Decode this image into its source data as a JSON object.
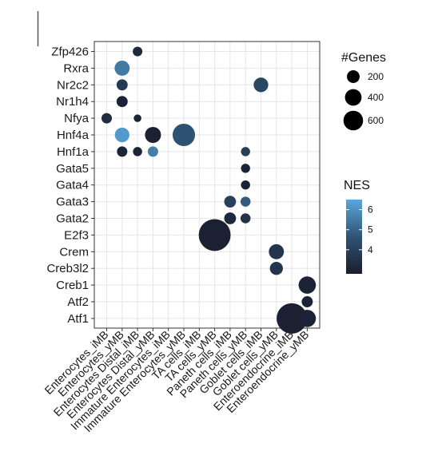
{
  "chart_data": {
    "type": "scatter",
    "title": "",
    "xlabel": "",
    "ylabel": "",
    "grid": true,
    "legend_placement": "right",
    "x_categories": [
      "Enterocytes_iMB",
      "Enterocytes_yMB",
      "Enterocytes Distal_iMB",
      "Enterocytes Distal_yMB",
      "Immature Enterocytes_iMB",
      "Immature Enterocytes_yMB",
      "TA cells_iMB",
      "TA cells_yMB",
      "Paneth cells_iMB",
      "Paneth cells_yMB",
      "Goblet cells_iMB",
      "Goblet cells_yMB",
      "Enteroendocrine_iMB",
      "Enteroendocrine_yMB"
    ],
    "y_categories": [
      "Zfp426",
      "Rxra",
      "Nr2c2",
      "Nr1h4",
      "Nfya",
      "Hnf4a",
      "Hnf1a",
      "Gata5",
      "Gata4",
      "Gata3",
      "Gata2",
      "E2f3",
      "Crem",
      "Creb3l2",
      "Creb1",
      "Atf2",
      "Atf1"
    ],
    "points": [
      {
        "x": "Enterocytes Distal_iMB",
        "y": "Zfp426",
        "genes": 40,
        "nes": 3.2
      },
      {
        "x": "Enterocytes_yMB",
        "y": "Rxra",
        "genes": 130,
        "nes": 5.5
      },
      {
        "x": "Enterocytes_yMB",
        "y": "Nr2c2",
        "genes": 60,
        "nes": 3.8
      },
      {
        "x": "Goblet cells_iMB",
        "y": "Nr2c2",
        "genes": 120,
        "nes": 4.2
      },
      {
        "x": "Enterocytes_yMB",
        "y": "Nr1h4",
        "genes": 60,
        "nes": 3.0
      },
      {
        "x": "Enterocytes_iMB",
        "y": "Nfya",
        "genes": 50,
        "nes": 3.3
      },
      {
        "x": "Enterocytes Distal_iMB",
        "y": "Nfya",
        "genes": 20,
        "nes": 3.0
      },
      {
        "x": "Enterocytes_yMB",
        "y": "Hnf4a",
        "genes": 120,
        "nes": 6.2
      },
      {
        "x": "Enterocytes Distal_yMB",
        "y": "Hnf4a",
        "genes": 150,
        "nes": 2.9
      },
      {
        "x": "Immature Enterocytes_yMB",
        "y": "Hnf4a",
        "genes": 330,
        "nes": 4.6
      },
      {
        "x": "Enterocytes_yMB",
        "y": "Hnf1a",
        "genes": 50,
        "nes": 3.1
      },
      {
        "x": "Enterocytes Distal_iMB",
        "y": "Hnf1a",
        "genes": 35,
        "nes": 3.0
      },
      {
        "x": "Enterocytes Distal_yMB",
        "y": "Hnf1a",
        "genes": 50,
        "nes": 5.6
      },
      {
        "x": "Paneth cells_yMB",
        "y": "Hnf1a",
        "genes": 35,
        "nes": 3.9
      },
      {
        "x": "Paneth cells_yMB",
        "y": "Gata5",
        "genes": 35,
        "nes": 3.0
      },
      {
        "x": "Paneth cells_yMB",
        "y": "Gata4",
        "genes": 35,
        "nes": 3.0
      },
      {
        "x": "Paneth cells_iMB",
        "y": "Gata3",
        "genes": 70,
        "nes": 4.0
      },
      {
        "x": "Paneth cells_yMB",
        "y": "Gata3",
        "genes": 45,
        "nes": 4.8
      },
      {
        "x": "Paneth cells_iMB",
        "y": "Gata2",
        "genes": 70,
        "nes": 3.2
      },
      {
        "x": "Paneth cells_yMB",
        "y": "Gata2",
        "genes": 45,
        "nes": 3.5
      },
      {
        "x": "TA cells_yMB",
        "y": "E2f3",
        "genes": 720,
        "nes": 2.9
      },
      {
        "x": "Goblet cells_yMB",
        "y": "Crem",
        "genes": 130,
        "nes": 3.6
      },
      {
        "x": "Goblet cells_yMB",
        "y": "Creb3l2",
        "genes": 90,
        "nes": 3.6
      },
      {
        "x": "Enteroendocrine_yMB",
        "y": "Creb1",
        "genes": 180,
        "nes": 3.0
      },
      {
        "x": "Enteroendocrine_yMB",
        "y": "Atf2",
        "genes": 60,
        "nes": 3.0
      },
      {
        "x": "Enteroendocrine_iMB",
        "y": "Atf1",
        "genes": 650,
        "nes": 2.9
      },
      {
        "x": "Enteroendocrine_yMB",
        "y": "Atf1",
        "genes": 180,
        "nes": 3.0
      }
    ],
    "size_legend": {
      "title": "#Genes",
      "values": [
        200,
        400,
        600
      ],
      "labels": [
        "200",
        "400",
        "600"
      ]
    },
    "color_legend": {
      "title": "NES",
      "range": [
        2.8,
        6.5
      ],
      "ticks": [
        4,
        5,
        6
      ],
      "labels": [
        "4",
        "5",
        "6"
      ],
      "colors": [
        "#1a1d2e",
        "#5ba6dd"
      ]
    }
  }
}
